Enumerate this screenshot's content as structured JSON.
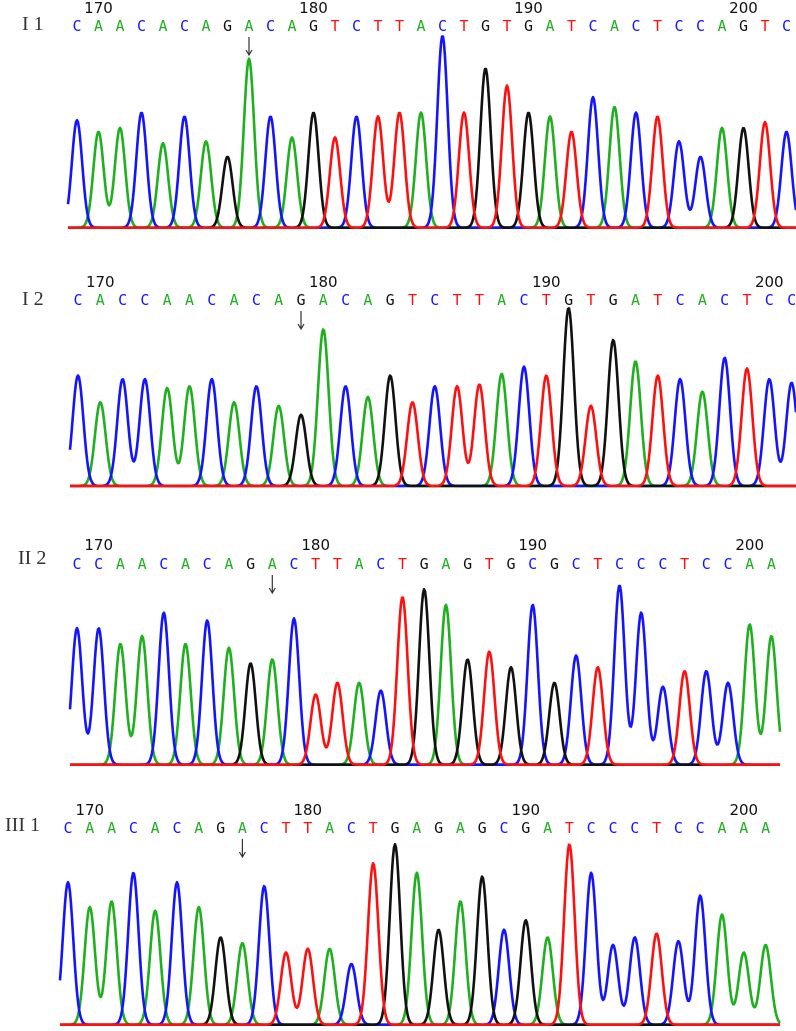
{
  "chart_data": [
    {
      "type": "line",
      "title": "I 1",
      "tick_labels": [
        "170",
        "180",
        "190",
        "200"
      ],
      "first_position": 169,
      "sequence": "CAACACAGACAGTCTTACTGTGATCACTCCAGTC",
      "peak_heights": [
        0.56,
        0.5,
        0.52,
        0.6,
        0.44,
        0.58,
        0.45,
        0.37,
        0.88,
        0.58,
        0.47,
        0.6,
        0.47,
        0.58,
        0.58,
        0.6,
        0.6,
        1.0,
        0.6,
        0.83,
        0.74,
        0.6,
        0.58,
        0.5,
        0.68,
        0.63,
        0.6,
        0.58,
        0.45,
        0.37,
        0.52,
        0.52,
        0.55,
        0.5
      ],
      "mutation_arrow_position": 177
    },
    {
      "type": "line",
      "title": "I 2",
      "tick_labels": [
        "170",
        "180",
        "190",
        "200"
      ],
      "first_position": 169,
      "sequence": "CACCAACACAGACAGTCTTACTGTGATCACTCC",
      "peak_heights": [
        0.62,
        0.47,
        0.6,
        0.6,
        0.55,
        0.56,
        0.6,
        0.47,
        0.56,
        0.45,
        0.4,
        0.88,
        0.56,
        0.5,
        0.62,
        0.47,
        0.56,
        0.56,
        0.57,
        0.63,
        0.67,
        0.62,
        1.0,
        0.45,
        0.82,
        0.7,
        0.62,
        0.6,
        0.53,
        0.72,
        0.66,
        0.6,
        0.58
      ],
      "mutation_arrow_position": 179
    },
    {
      "type": "line",
      "title": "II 2",
      "tick_labels": [
        "170",
        "180",
        "190",
        "200"
      ],
      "first_position": 169,
      "sequence": "CCAACACAGACTTACTGAGTGCGCTCCCTCCAA",
      "peak_heights": [
        0.7,
        0.7,
        0.62,
        0.66,
        0.78,
        0.62,
        0.74,
        0.6,
        0.52,
        0.54,
        0.75,
        0.36,
        0.42,
        0.42,
        0.38,
        0.86,
        0.9,
        0.82,
        0.54,
        0.58,
        0.5,
        0.82,
        0.42,
        0.56,
        0.5,
        0.92,
        0.78,
        0.4,
        0.48,
        0.48,
        0.42,
        0.72,
        0.66
      ],
      "mutation_arrow_position": 178
    },
    {
      "type": "line",
      "title": "III 1",
      "tick_labels": [
        "170",
        "180",
        "190",
        "200"
      ],
      "first_position": 169,
      "sequence": "CAACACAGACTTACTGAGAGCGATCCCTCCAAA",
      "peak_heights": [
        0.75,
        0.62,
        0.65,
        0.8,
        0.6,
        0.75,
        0.62,
        0.46,
        0.43,
        0.73,
        0.38,
        0.4,
        0.4,
        0.32,
        0.85,
        0.95,
        0.8,
        0.5,
        0.65,
        0.78,
        0.5,
        0.55,
        0.46,
        0.95,
        0.8,
        0.42,
        0.46,
        0.48,
        0.44,
        0.68,
        0.58,
        0.38,
        0.42
      ],
      "mutation_arrow_position": 177
    }
  ],
  "colors": {
    "A": "#1fb01f",
    "C": "#1414ff",
    "G": "#111111",
    "T": "#ff1010"
  }
}
